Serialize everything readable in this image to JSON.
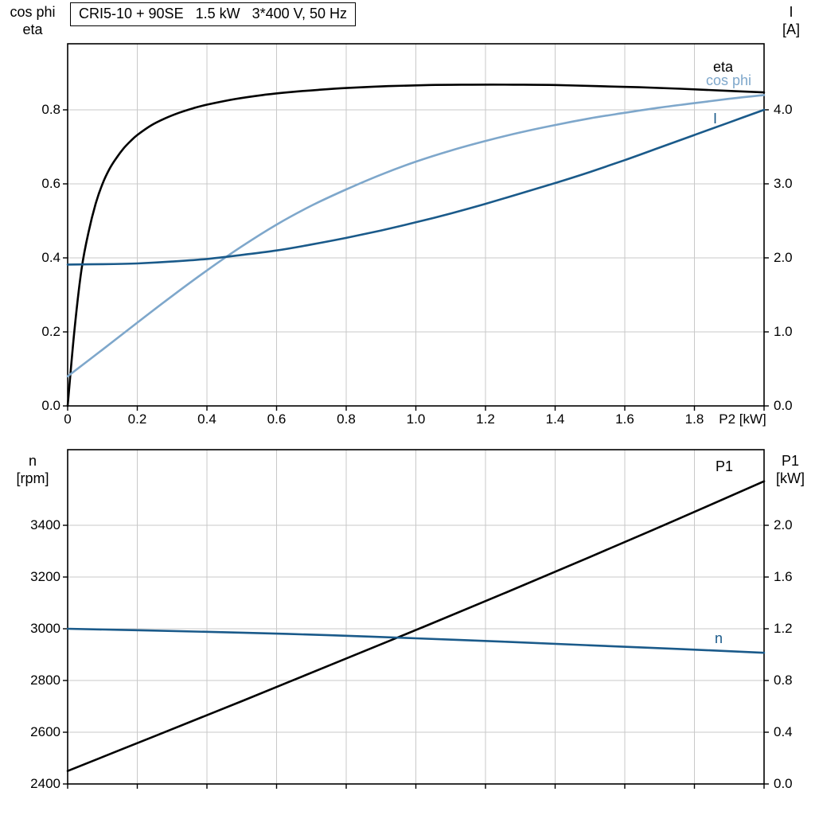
{
  "title_box": {
    "text": "CRI5-10 + 90SE   1.5 kW   3*400 V, 50 Hz"
  },
  "colors": {
    "curve_black": "#000000",
    "curve_dark_blue": "#1a5a8a",
    "curve_light_blue": "#7ea7cb",
    "grid": "#c9c9c9",
    "frame": "#000000"
  },
  "top_chart": {
    "y_left_line1": "cos phi",
    "y_left_line2": "eta",
    "y_right_line1": "I",
    "y_right_line2": "[A]",
    "x_axis_label": "P2 [kW]",
    "curve_labels": {
      "eta": "eta",
      "cos_phi": "cos phi",
      "current": "I"
    }
  },
  "bottom_chart": {
    "y_left_line1": "n",
    "y_left_line2": "[rpm]",
    "y_right_line1": "P1",
    "y_right_line2": "[kW]",
    "curve_labels": {
      "p1": "P1",
      "n": "n"
    }
  },
  "chart_data": [
    {
      "type": "line",
      "title": "CRI5-10 + 90SE 1.5 kW 3*400 V, 50 Hz",
      "xlabel": "P2 [kW]",
      "x_range": [
        0,
        2.0
      ],
      "x_ticks": [
        0,
        0.2,
        0.4,
        0.6,
        0.8,
        1.0,
        1.2,
        1.4,
        1.6,
        1.8
      ],
      "x_tick_labels": [
        "0",
        "0.2",
        "0.4",
        "0.6",
        "0.8",
        "1.0",
        "1.2",
        "1.4",
        "1.6",
        "1.8"
      ],
      "grid": true,
      "y_left": {
        "label": "cos phi / eta",
        "range": [
          0,
          0.9785
        ],
        "ticks": [
          0,
          0.2,
          0.4,
          0.6,
          0.8
        ],
        "tick_labels": [
          "0.0",
          "0.2",
          "0.4",
          "0.6",
          "0.8"
        ]
      },
      "y_right": {
        "label": "I [A]",
        "range": [
          0,
          4.892
        ],
        "ticks": [
          0,
          1.0,
          2.0,
          3.0,
          4.0
        ],
        "tick_labels": [
          "0.0",
          "1.0",
          "2.0",
          "3.0",
          "4.0"
        ]
      },
      "series": [
        {
          "name": "eta",
          "axis": "left",
          "color_key": "curve_black",
          "points": [
            [
              0,
              0
            ],
            [
              0.02,
              0.21
            ],
            [
              0.04,
              0.37
            ],
            [
              0.06,
              0.47
            ],
            [
              0.08,
              0.545
            ],
            [
              0.1,
              0.6
            ],
            [
              0.12,
              0.64
            ],
            [
              0.14,
              0.67
            ],
            [
              0.16,
              0.695
            ],
            [
              0.18,
              0.715
            ],
            [
              0.2,
              0.732
            ],
            [
              0.24,
              0.758
            ],
            [
              0.28,
              0.777
            ],
            [
              0.32,
              0.792
            ],
            [
              0.36,
              0.804
            ],
            [
              0.4,
              0.814
            ],
            [
              0.48,
              0.829
            ],
            [
              0.56,
              0.84
            ],
            [
              0.64,
              0.848
            ],
            [
              0.72,
              0.854
            ],
            [
              0.8,
              0.859
            ],
            [
              0.92,
              0.864
            ],
            [
              1.04,
              0.867
            ],
            [
              1.16,
              0.868
            ],
            [
              1.28,
              0.868
            ],
            [
              1.4,
              0.867
            ],
            [
              1.52,
              0.864
            ],
            [
              1.64,
              0.861
            ],
            [
              1.76,
              0.857
            ],
            [
              1.88,
              0.852
            ],
            [
              2.0,
              0.847
            ]
          ]
        },
        {
          "name": "cos phi",
          "axis": "left",
          "color_key": "curve_light_blue",
          "points": [
            [
              0,
              0.08
            ],
            [
              0.1,
              0.152
            ],
            [
              0.2,
              0.225
            ],
            [
              0.3,
              0.297
            ],
            [
              0.4,
              0.366
            ],
            [
              0.5,
              0.431
            ],
            [
              0.6,
              0.49
            ],
            [
              0.7,
              0.541
            ],
            [
              0.8,
              0.585
            ],
            [
              0.9,
              0.625
            ],
            [
              1.0,
              0.66
            ],
            [
              1.1,
              0.69
            ],
            [
              1.2,
              0.716
            ],
            [
              1.3,
              0.739
            ],
            [
              1.4,
              0.759
            ],
            [
              1.5,
              0.777
            ],
            [
              1.6,
              0.792
            ],
            [
              1.7,
              0.806
            ],
            [
              1.8,
              0.818
            ],
            [
              1.9,
              0.83
            ],
            [
              2.0,
              0.84
            ]
          ]
        },
        {
          "name": "I",
          "axis": "right",
          "color_key": "curve_dark_blue",
          "points": [
            [
              0,
              1.91
            ],
            [
              0.1,
              1.915
            ],
            [
              0.2,
              1.925
            ],
            [
              0.3,
              1.95
            ],
            [
              0.4,
              1.985
            ],
            [
              0.5,
              2.04
            ],
            [
              0.6,
              2.1
            ],
            [
              0.7,
              2.18
            ],
            [
              0.8,
              2.27
            ],
            [
              0.9,
              2.37
            ],
            [
              1.0,
              2.48
            ],
            [
              1.1,
              2.6
            ],
            [
              1.2,
              2.73
            ],
            [
              1.3,
              2.87
            ],
            [
              1.4,
              3.01
            ],
            [
              1.5,
              3.16
            ],
            [
              1.6,
              3.32
            ],
            [
              1.7,
              3.49
            ],
            [
              1.8,
              3.66
            ],
            [
              1.9,
              3.83
            ],
            [
              2.0,
              4.0
            ]
          ]
        }
      ]
    },
    {
      "type": "line",
      "title": "",
      "xlabel": "",
      "x_range": [
        0,
        2.0
      ],
      "x_ticks": [
        0,
        0.2,
        0.4,
        0.6,
        0.8,
        1.0,
        1.2,
        1.4,
        1.6,
        1.8
      ],
      "x_tick_labels": [],
      "grid": true,
      "y_left": {
        "label": "n [rpm]",
        "range": [
          2400,
          3692.3
        ],
        "ticks": [
          2400,
          2600,
          2800,
          3000,
          3200,
          3400
        ],
        "tick_labels": [
          "2400",
          "2600",
          "2800",
          "3000",
          "3200",
          "3400"
        ]
      },
      "y_right": {
        "label": "P1 [kW]",
        "range": [
          0,
          2.5846
        ],
        "ticks": [
          0,
          0.4,
          0.8,
          1.2,
          1.6,
          2.0
        ],
        "tick_labels": [
          "0.0",
          "0.4",
          "0.8",
          "1.2",
          "1.6",
          "2.0"
        ]
      },
      "series": [
        {
          "name": "P1",
          "axis": "right",
          "color_key": "curve_black",
          "points": [
            [
              0,
              0.1
            ],
            [
              0.25,
              0.37
            ],
            [
              0.5,
              0.64
            ],
            [
              0.75,
              0.915
            ],
            [
              1.0,
              1.19
            ],
            [
              1.25,
              1.47
            ],
            [
              1.5,
              1.755
            ],
            [
              1.75,
              2.045
            ],
            [
              2.0,
              2.34
            ]
          ]
        },
        {
          "name": "n",
          "axis": "left",
          "color_key": "curve_dark_blue",
          "points": [
            [
              0,
              3000
            ],
            [
              0.25,
              2993
            ],
            [
              0.5,
              2985
            ],
            [
              0.75,
              2975
            ],
            [
              1.0,
              2963
            ],
            [
              1.25,
              2950
            ],
            [
              1.5,
              2936
            ],
            [
              1.75,
              2922
            ],
            [
              2.0,
              2907
            ]
          ]
        }
      ]
    }
  ]
}
